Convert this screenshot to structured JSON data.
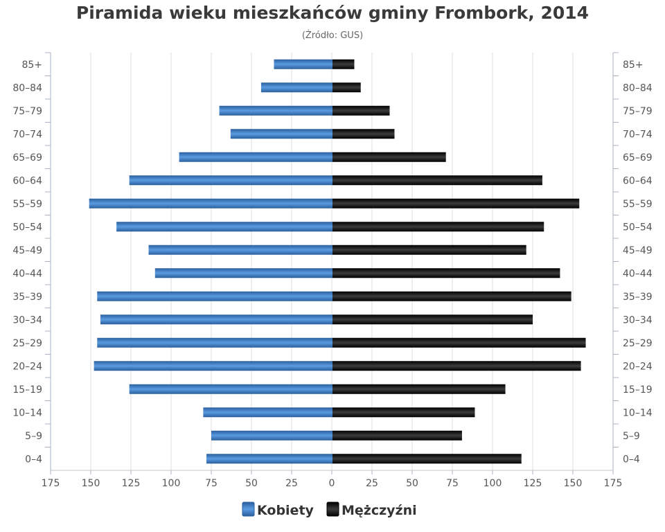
{
  "chart_data": {
    "type": "bar",
    "orientation": "horizontal-population-pyramid",
    "title": "Piramida wieku mieszkańców gminy Frombork, 2014",
    "subtitle": "(Źródło: GUS)",
    "categories": [
      "85+",
      "80–84",
      "75–79",
      "70–74",
      "65–69",
      "60–64",
      "55–59",
      "50–54",
      "45–49",
      "40–44",
      "35–39",
      "30–34",
      "25–29",
      "20–24",
      "15–19",
      "10–14",
      "5–9",
      "0–4"
    ],
    "series": [
      {
        "name": "Kobiety",
        "color": "#3d7fc6",
        "values": [
          36,
          44,
          70,
          63,
          95,
          126,
          151,
          134,
          114,
          110,
          146,
          144,
          146,
          148,
          126,
          80,
          75,
          78
        ]
      },
      {
        "name": "Mężczyźni",
        "color": "#1a1a1a",
        "values": [
          14,
          18,
          36,
          39,
          71,
          131,
          154,
          132,
          121,
          142,
          149,
          125,
          158,
          155,
          108,
          89,
          81,
          118
        ]
      }
    ],
    "xlim": [
      -175,
      175
    ],
    "x_ticks": [
      "175",
      "150",
      "125",
      "100",
      "75",
      "50",
      "25",
      "0",
      "25",
      "50",
      "75",
      "100",
      "125",
      "150",
      "175"
    ],
    "grid": true,
    "legend_position": "bottom-center"
  }
}
